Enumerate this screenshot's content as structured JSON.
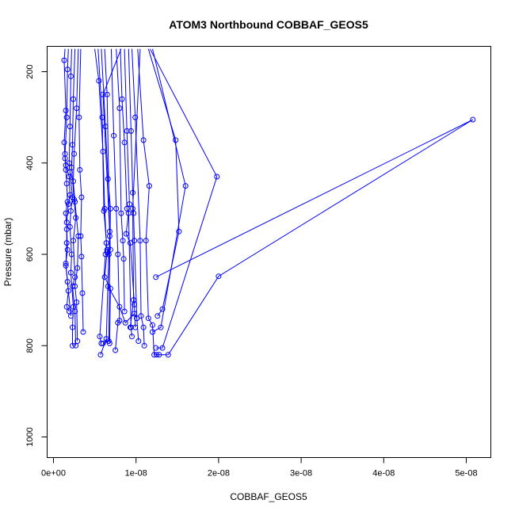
{
  "chart_data": {
    "type": "scatter",
    "title": "ATOM3 Northbound COBBAF_GEOS5",
    "xlabel": "COBBAF_GEOS5",
    "ylabel": "Pressure (mbar)",
    "xlim": [
      0,
      5.2e-08
    ],
    "ylim": [
      1040,
      150
    ],
    "y_reversed": true,
    "grid": false,
    "color": "#0000ff",
    "xticks": [
      {
        "value": 0,
        "label": "0e+00"
      },
      {
        "value": 1e-08,
        "label": "1e-08"
      },
      {
        "value": 2e-08,
        "label": "2e-08"
      },
      {
        "value": 3e-08,
        "label": "3e-08"
      },
      {
        "value": 4e-08,
        "label": "4e-08"
      },
      {
        "value": 5e-08,
        "label": "5e-08"
      }
    ],
    "yticks": [
      {
        "value": 200,
        "label": "200"
      },
      {
        "value": 400,
        "label": "400"
      },
      {
        "value": 600,
        "label": "600"
      },
      {
        "value": 800,
        "label": "800"
      },
      {
        "value": 1000,
        "label": "1000"
      }
    ],
    "series": [
      {
        "points": [
          [
            1.4e-09,
            150
          ],
          [
            1.3e-09,
            175
          ],
          [
            1.5e-09,
            285
          ],
          [
            1.3e-09,
            355
          ],
          [
            1.4e-09,
            390
          ],
          [
            1.5e-09,
            415
          ],
          [
            1.6e-09,
            445
          ],
          [
            1.7e-09,
            485
          ],
          [
            1.5e-09,
            510
          ],
          [
            1.6e-09,
            545
          ],
          [
            1.7e-09,
            590
          ],
          [
            1.5e-09,
            620
          ],
          [
            1.8e-09,
            680
          ],
          [
            1.6e-09,
            715
          ],
          [
            1.9e-09,
            725
          ]
        ]
      },
      {
        "points": [
          [
            1.8e-09,
            150
          ],
          [
            1.7e-09,
            195
          ],
          [
            1.6e-09,
            300
          ],
          [
            1.4e-09,
            380
          ],
          [
            1.5e-09,
            405
          ],
          [
            1.9e-09,
            430
          ],
          [
            2e-09,
            470
          ],
          [
            1.8e-09,
            490
          ],
          [
            1.6e-09,
            530
          ],
          [
            1.6e-09,
            575
          ],
          [
            1.5e-09,
            625
          ],
          [
            1.7e-09,
            660
          ],
          [
            2.1e-09,
            735
          ]
        ]
      },
      {
        "points": [
          [
            2.2e-09,
            150
          ],
          [
            2.1e-09,
            210
          ],
          [
            2e-09,
            320
          ],
          [
            1.9e-09,
            400
          ],
          [
            2e-09,
            420
          ],
          [
            2.3e-09,
            475
          ],
          [
            2.1e-09,
            505
          ],
          [
            2e-09,
            540
          ],
          [
            2.2e-09,
            600
          ],
          [
            2.1e-09,
            640
          ],
          [
            2.4e-09,
            715
          ],
          [
            2.3e-09,
            760
          ],
          [
            2.3e-09,
            800
          ]
        ]
      },
      {
        "points": [
          [
            2.6e-09,
            150
          ],
          [
            2.4e-09,
            260
          ],
          [
            2.3e-09,
            360
          ],
          [
            2.2e-09,
            410
          ],
          [
            2.5e-09,
            480
          ],
          [
            2.7e-09,
            520
          ],
          [
            2.4e-09,
            570
          ],
          [
            2.6e-09,
            650
          ],
          [
            2.3e-09,
            670
          ],
          [
            2.6e-09,
            725
          ],
          [
            2.7e-09,
            800
          ]
        ]
      },
      {
        "points": [
          [
            3e-09,
            150
          ],
          [
            2.8e-09,
            280
          ],
          [
            2.5e-09,
            380
          ],
          [
            2.4e-09,
            440
          ],
          [
            2.6e-09,
            485
          ],
          [
            3e-09,
            560
          ],
          [
            2.9e-09,
            630
          ],
          [
            2.6e-09,
            670
          ],
          [
            2.8e-09,
            705
          ],
          [
            2.9e-09,
            790
          ]
        ]
      },
      {
        "points": [
          [
            3.3e-09,
            150
          ],
          [
            3.1e-09,
            300
          ],
          [
            3.2e-09,
            415
          ],
          [
            3.4e-09,
            475
          ],
          [
            3.3e-09,
            560
          ],
          [
            3.4e-09,
            605
          ],
          [
            3.5e-09,
            685
          ],
          [
            3.6e-09,
            770
          ]
        ]
      },
      {
        "points": [
          [
            5e-09,
            150
          ],
          [
            5.5e-09,
            220
          ],
          [
            6e-09,
            375
          ],
          [
            6.2e-09,
            500
          ],
          [
            6.4e-09,
            575
          ],
          [
            6.3e-09,
            600
          ],
          [
            5.6e-09,
            780
          ],
          [
            5.8e-09,
            795
          ]
        ]
      },
      {
        "points": [
          [
            5.4e-09,
            150
          ],
          [
            5.9e-09,
            300
          ],
          [
            6.1e-09,
            505
          ],
          [
            6.5e-09,
            590
          ],
          [
            6.7e-09,
            600
          ],
          [
            6.4e-09,
            785
          ],
          [
            5.7e-09,
            820
          ]
        ]
      },
      {
        "points": [
          [
            5.8e-09,
            150
          ],
          [
            6.3e-09,
            320
          ],
          [
            6.6e-09,
            435
          ],
          [
            6.9e-09,
            500
          ],
          [
            6.7e-09,
            790
          ],
          [
            6e-09,
            795
          ]
        ]
      },
      {
        "points": [
          [
            6.2e-09,
            150
          ],
          [
            6.5e-09,
            250
          ],
          [
            6.8e-09,
            560
          ],
          [
            6.9e-09,
            590
          ],
          [
            6.5e-09,
            595
          ],
          [
            6.2e-09,
            650
          ],
          [
            6.9e-09,
            675
          ],
          [
            6.8e-09,
            795
          ]
        ]
      },
      {
        "points": [
          [
            7e-09,
            150
          ],
          [
            7.3e-09,
            340
          ],
          [
            7.6e-09,
            500
          ],
          [
            7.8e-09,
            600
          ],
          [
            8e-09,
            745
          ],
          [
            7.8e-09,
            750
          ],
          [
            7.5e-09,
            810
          ]
        ]
      },
      {
        "points": [
          [
            7.6e-09,
            150
          ],
          [
            8e-09,
            280
          ],
          [
            8.2e-09,
            510
          ],
          [
            8.4e-09,
            570
          ],
          [
            8.5e-09,
            610
          ],
          [
            8.6e-09,
            725
          ]
        ]
      },
      {
        "points": [
          [
            8.1e-09,
            150
          ],
          [
            8.3e-09,
            260
          ],
          [
            8.6e-09,
            355
          ],
          [
            8.9e-09,
            500
          ],
          [
            9.1e-09,
            510
          ],
          [
            9.4e-09,
            760
          ],
          [
            9.5e-09,
            780
          ]
        ]
      },
      {
        "points": [
          [
            8.6e-09,
            150
          ],
          [
            8.9e-09,
            330
          ],
          [
            9.2e-09,
            490
          ],
          [
            8.8e-09,
            555
          ],
          [
            9.3e-09,
            575
          ],
          [
            9.8e-09,
            710
          ],
          [
            9.9e-09,
            760
          ]
        ]
      },
      {
        "points": [
          [
            9.1e-09,
            150
          ],
          [
            9.4e-09,
            330
          ],
          [
            9.6e-09,
            465
          ],
          [
            9.7e-09,
            510
          ],
          [
            9.8e-09,
            570
          ],
          [
            1.01e-08,
            740
          ],
          [
            1.03e-08,
            790
          ]
        ]
      },
      {
        "points": [
          [
            9.5e-09,
            150
          ],
          [
            9.9e-09,
            300
          ],
          [
            1.05e-08,
            570
          ],
          [
            1.06e-08,
            735
          ],
          [
            1.09e-08,
            760
          ],
          [
            1.1e-08,
            800
          ]
        ]
      },
      {
        "points": [
          [
            1.02e-08,
            150
          ],
          [
            1.09e-08,
            350
          ],
          [
            1.16e-08,
            450
          ],
          [
            1.12e-08,
            570
          ],
          [
            1.15e-08,
            740
          ],
          [
            1.2e-08,
            755
          ],
          [
            1.22e-08,
            820
          ],
          [
            1.28e-08,
            820
          ]
        ]
      },
      {
        "points": [
          [
            1.05e-08,
            150
          ],
          [
            9.6e-09,
            500
          ],
          [
            9.7e-09,
            700
          ],
          [
            9.3e-09,
            760
          ]
        ]
      },
      {
        "points": [
          [
            8.2e-09,
            150
          ],
          [
            6e-09,
            250
          ],
          [
            6.8e-09,
            550
          ],
          [
            6.6e-09,
            670
          ],
          [
            8e-09,
            715
          ],
          [
            8.7e-09,
            750
          ],
          [
            9.8e-09,
            730
          ],
          [
            1.01e-08,
            740
          ]
        ]
      },
      {
        "points": [
          [
            1.15e-08,
            150
          ],
          [
            1.48e-08,
            350
          ],
          [
            1.52e-08,
            550
          ],
          [
            1.32e-08,
            720
          ],
          [
            1.26e-08,
            735
          ]
        ]
      },
      {
        "points": [
          [
            1.17e-08,
            150
          ],
          [
            1.98e-08,
            430
          ],
          [
            1.32e-08,
            805
          ],
          [
            1.24e-08,
            805
          ]
        ]
      },
      {
        "points": [
          [
            1.2e-08,
            150
          ],
          [
            1.6e-08,
            450
          ],
          [
            1.3e-08,
            760
          ],
          [
            1.2e-08,
            770
          ]
        ]
      },
      {
        "points": [
          [
            1.24e-08,
            650
          ],
          [
            5.08e-08,
            305
          ],
          [
            2e-08,
            648
          ],
          [
            1.39e-08,
            820
          ],
          [
            1.25e-08,
            820
          ]
        ]
      }
    ]
  }
}
